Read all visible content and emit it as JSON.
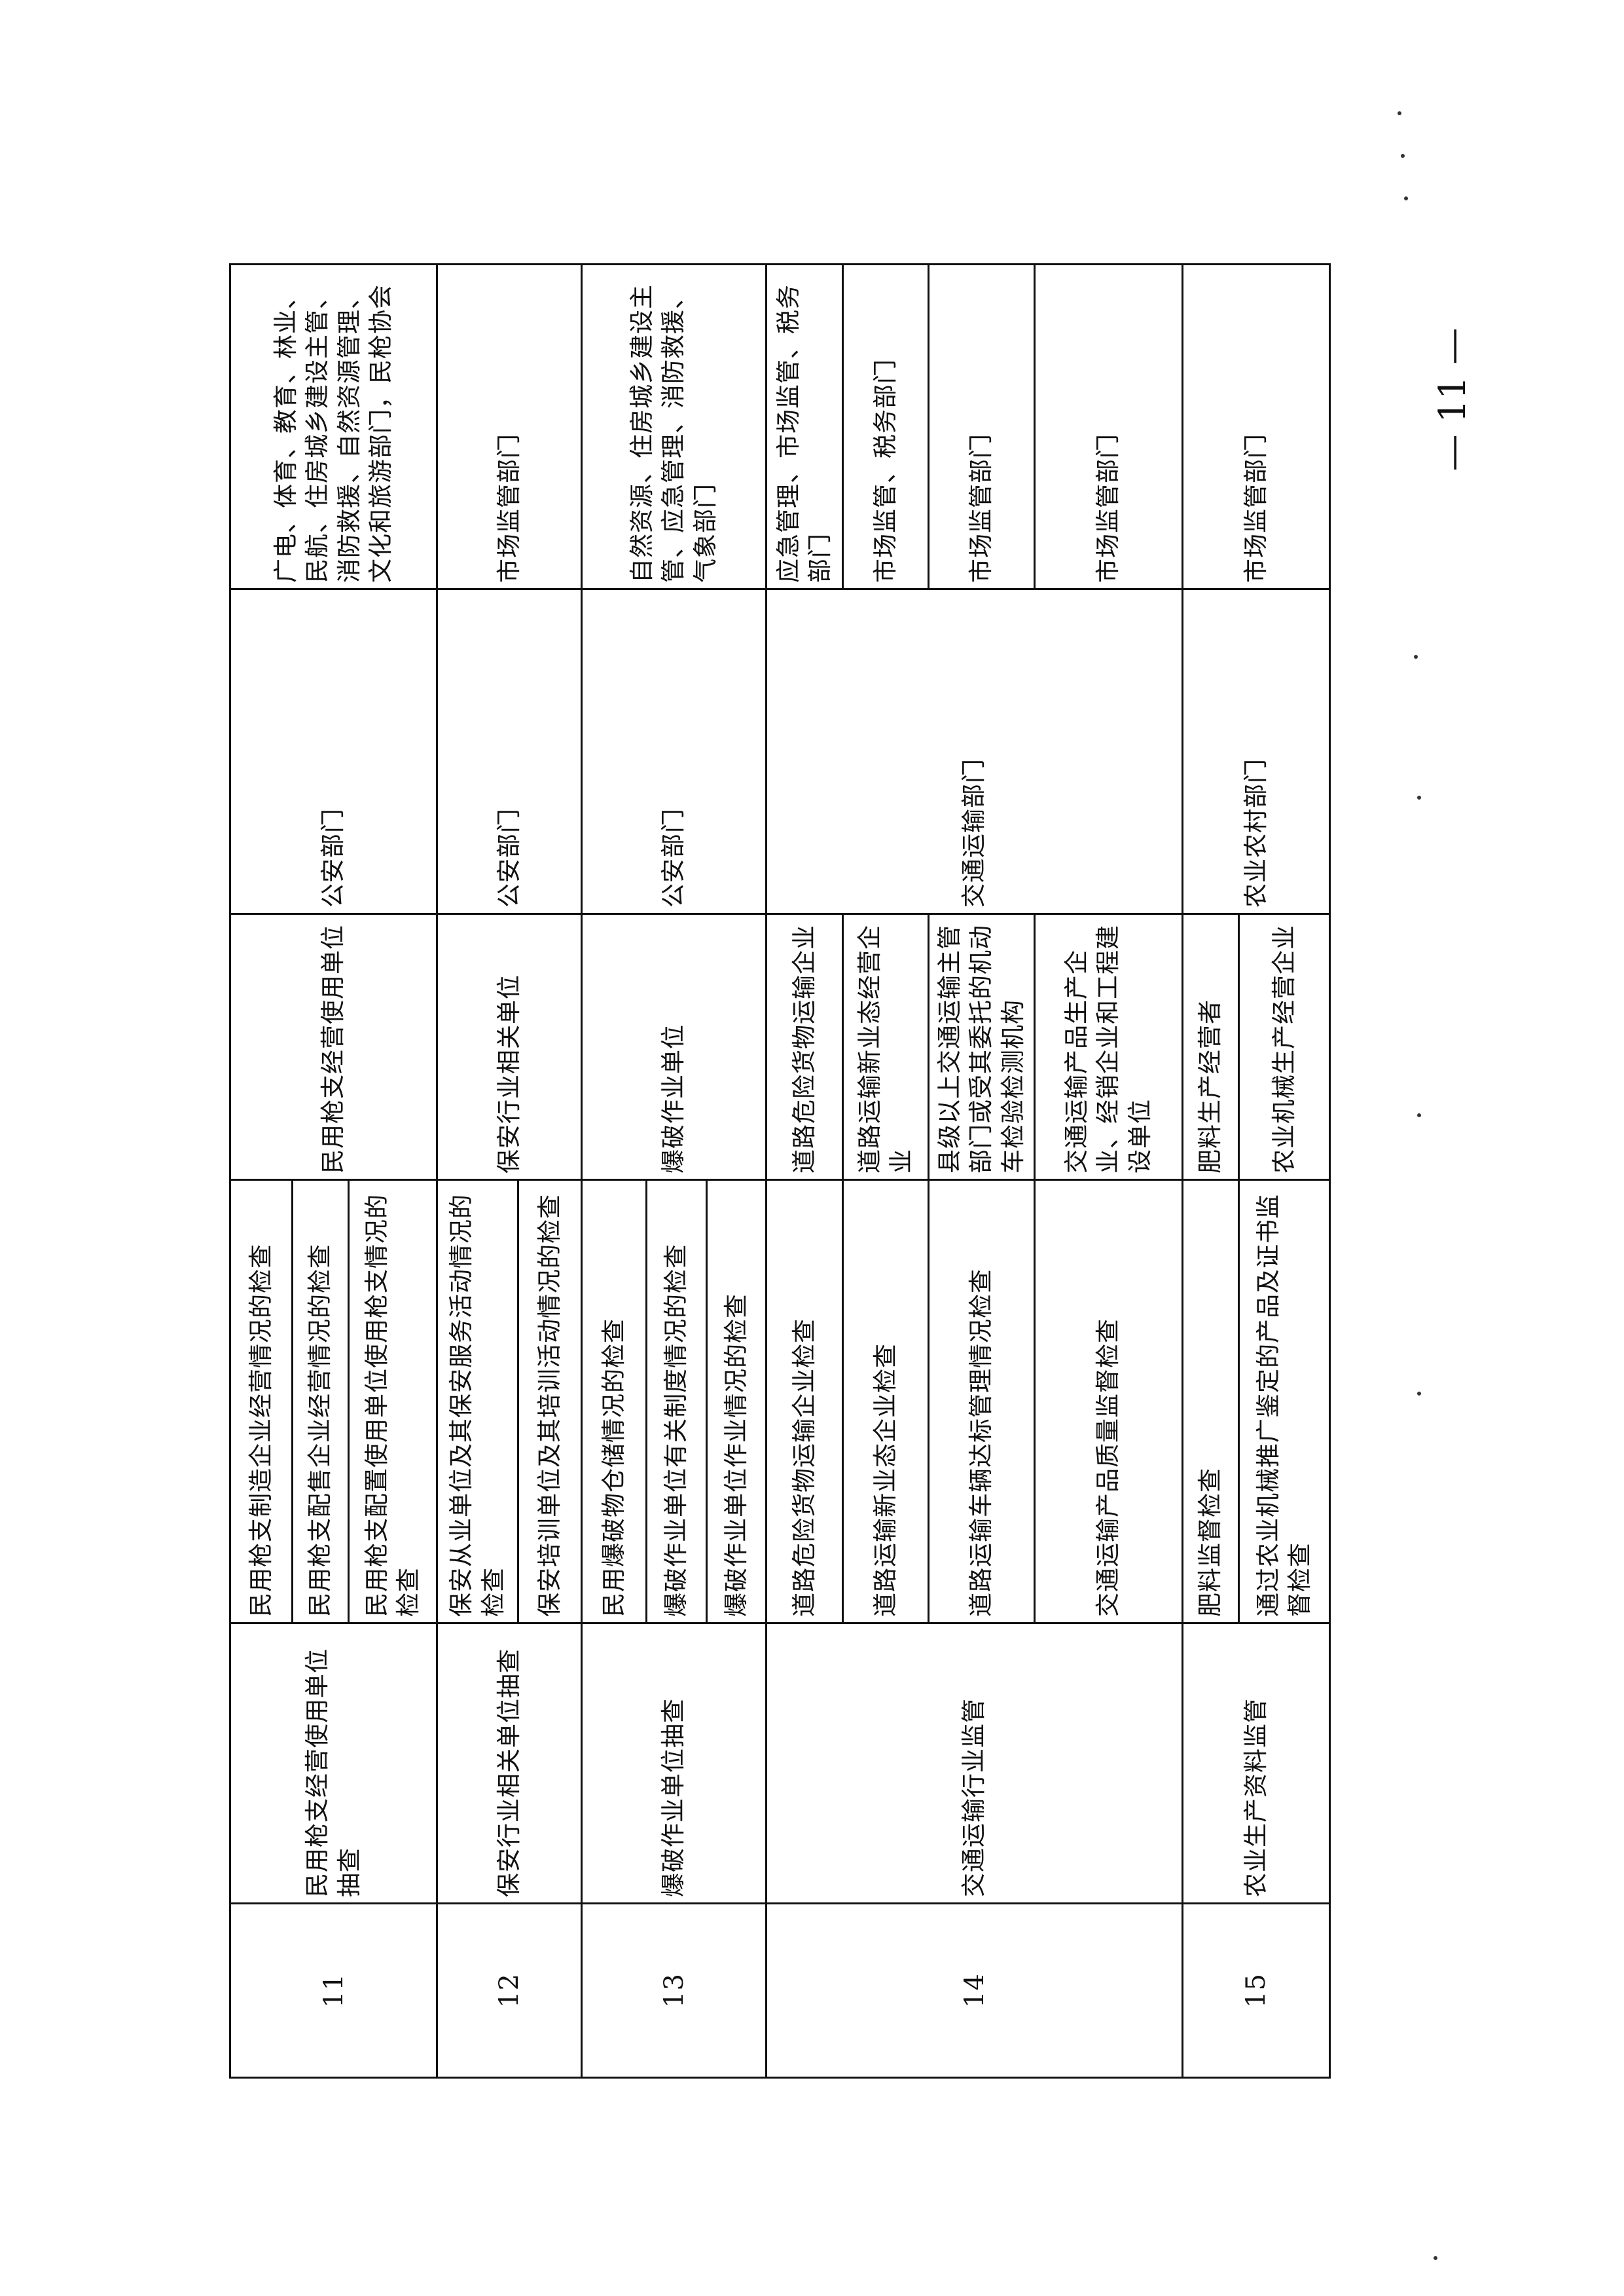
{
  "page_number": "— 11 —",
  "table": {
    "rows": [
      {
        "number": "11",
        "name": "民用枪支经营使用单位抽查",
        "items": [
          "民用枪支制造企业经营情况的检查",
          "民用枪支配售企业经营情况的检查",
          "民用枪支配置使用单位使用枪支情况的检查"
        ],
        "objects": [
          "民用枪支经营使用单位"
        ],
        "lead": "公安部门",
        "responsible": [
          "广电、体育、教育、林业、民航、住房城乡建设主管、消防救援、自然资源管理、文化和旅游部门，民枪协会"
        ]
      },
      {
        "number": "12",
        "name": "保安行业相关单位抽查",
        "items": [
          "保安从业单位及其保安服务活动情况的检查",
          "保安培训单位及其培训活动情况的检查"
        ],
        "objects": [
          "保安行业相关单位"
        ],
        "lead": "公安部门",
        "responsible": [
          "市场监管部门"
        ]
      },
      {
        "number": "13",
        "name": "爆破作业单位抽查",
        "items": [
          "民用爆破物仓储情况的检查",
          "爆破作业单位有关制度情况的检查",
          "爆破作业单位作业情况的检查"
        ],
        "objects": [
          "爆破作业单位"
        ],
        "lead": "公安部门",
        "responsible": [
          "自然资源、住房城乡建设主管、应急管理、消防救援、气象部门"
        ]
      },
      {
        "number": "14",
        "name": "交通运输行业监管",
        "items": [
          "道路危险货物运输企业检查",
          "道路运输新业态企业检查",
          "道路运输车辆达标管理情况检查",
          "交通运输产品质量监督检查"
        ],
        "objects": [
          "道路危险货物运输企业",
          "道路运输新业态经营企业",
          "县级以上交通运输主管部门或受其委托的机动车检验检测机构",
          "交通运输产品生产企业、经销企业和工程建设单位"
        ],
        "lead": "交通运输部门",
        "responsible": [
          "应急管理、市场监管、税务部门",
          "市场监管、税务部门",
          "市场监管部门",
          "市场监管部门"
        ]
      },
      {
        "number": "15",
        "name": "农业生产资料监管",
        "items": [
          "肥料监督检查",
          "通过农业机械推广鉴定的产品及证书监督检查"
        ],
        "objects": [
          "肥料生产经营者",
          "农业机械生产经营企业"
        ],
        "lead": "农业农村部门",
        "responsible": [
          "市场监管部门"
        ]
      }
    ]
  }
}
